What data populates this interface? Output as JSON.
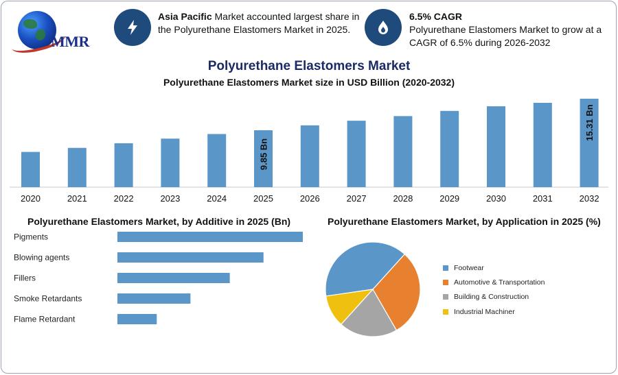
{
  "header": {
    "logo_text": "MMR",
    "info1": {
      "icon": "lightning-icon",
      "bold": "Asia Pacific",
      "text": " Market accounted largest share in the Polyurethane Elastomers Market in 2025."
    },
    "info2": {
      "icon": "flame-drop-icon",
      "bold": "6.5% CAGR",
      "text": "Polyurethane Elastomers Market to grow at a CAGR of 6.5% during 2026-2032"
    }
  },
  "main_title": "Polyurethane Elastomers Market",
  "colors": {
    "bar": "#5b96c9",
    "icon_bg": "#1f4a7c",
    "title": "#1b2a66"
  },
  "chart_data": [
    {
      "type": "bar",
      "title": "Polyurethane Elastomers Market size in USD Billion (2020-2032)",
      "categories": [
        "2020",
        "2021",
        "2022",
        "2023",
        "2024",
        "2025",
        "2026",
        "2027",
        "2028",
        "2029",
        "2030",
        "2031",
        "2032"
      ],
      "values": [
        6.1,
        6.8,
        7.6,
        8.4,
        9.2,
        9.85,
        10.7,
        11.5,
        12.3,
        13.2,
        14.0,
        14.6,
        15.31
      ],
      "data_labels": {
        "2025": "9.85 Bn",
        "2032": "15.31 Bn"
      },
      "ylim": [
        0,
        15.31
      ],
      "grid": false,
      "xlabel": "",
      "ylabel": ""
    },
    {
      "type": "bar",
      "orientation": "horizontal",
      "title": "Polyurethane Elastomers Market, by Additive in 2025 (Bn)",
      "categories": [
        "Pigments",
        "Blowing agents",
        "Fillers",
        "Smoke Retardants",
        "Flame Retardant"
      ],
      "values": [
        3.3,
        2.6,
        2.0,
        1.3,
        0.7
      ],
      "xlim": [
        0,
        3.3
      ]
    },
    {
      "type": "pie",
      "title": "Polyurethane Elastomers Market, by Application in 2025 (%)",
      "categories": [
        "Footwear",
        "Automotive & Transportation",
        "Building & Construction",
        "Industrial Machiner"
      ],
      "values": [
        39,
        30,
        20,
        11
      ],
      "colors": [
        "#5b96c9",
        "#e8812f",
        "#a5a5a5",
        "#f0c010"
      ],
      "legend": "right"
    }
  ]
}
